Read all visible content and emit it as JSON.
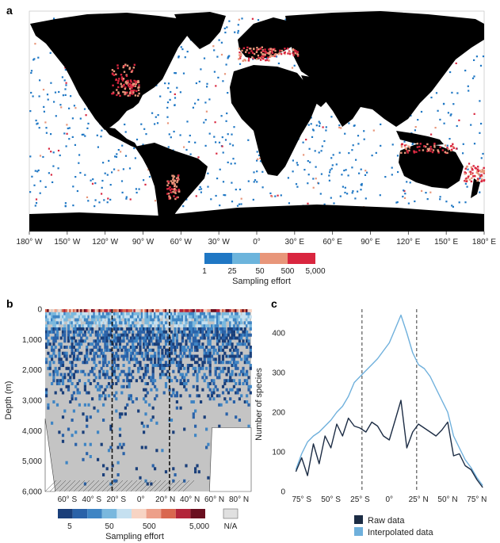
{
  "panels": {
    "a": "a",
    "b": "b",
    "c": "c"
  },
  "colors": {
    "land": "#000000",
    "low": "#1f77c4",
    "mid": "#e8967a",
    "high": "#d9263f",
    "grey": "#c4c4c4",
    "raw": "#1c2c44",
    "interp": "#6fb0dc"
  },
  "chart_data": [
    {
      "type": "heatmap",
      "panel": "a",
      "x_ticks": [
        "180° W",
        "150° W",
        "120° W",
        "90° W",
        "60° W",
        "30° W",
        "0°",
        "30° E",
        "60° E",
        "90° E",
        "120° E",
        "150° E",
        "180° E"
      ],
      "xlim": [
        -180,
        180
      ],
      "legend": {
        "title": "Sampling effort",
        "tick_labels": [
          "1",
          "25",
          "50",
          "500",
          "5,000"
        ],
        "colors": [
          "#1f77c4",
          "#6cb4dc",
          "#e8967a",
          "#d9263f"
        ]
      }
    },
    {
      "type": "heatmap",
      "panel": "b",
      "ylabel": "Depth (m)",
      "y_ticks": [
        "0",
        "1,000",
        "2,000",
        "3,000",
        "4,000",
        "5,000",
        "6,000"
      ],
      "ylim": [
        0,
        6000
      ],
      "x_ticks": [
        "60° S",
        "40° S",
        "20° S",
        "0°",
        "20° N",
        "40° N",
        "60° N",
        "80° N"
      ],
      "x_tick_values": [
        -60,
        -40,
        -20,
        0,
        20,
        40,
        60,
        80
      ],
      "xlim": [
        -78,
        90
      ],
      "dashed_lines_lat": [
        -23.4,
        23.4
      ],
      "legend": {
        "title": "Sampling effort",
        "tick_labels": [
          "5",
          "50",
          "500",
          "5,000",
          "N/A"
        ],
        "colors": [
          "#1a3f7a",
          "#2a62a8",
          "#3f85c4",
          "#7ab8de",
          "#c5e0f0",
          "#f7d4c4",
          "#eda08a",
          "#d9674f",
          "#b3253a",
          "#6a0f1f"
        ]
      }
    },
    {
      "type": "line",
      "panel": "c",
      "ylabel": "Number of species",
      "y_ticks": [
        "0",
        "100",
        "200",
        "300",
        "400"
      ],
      "ylim": [
        0,
        460
      ],
      "x_ticks": [
        "75° S",
        "50° S",
        "25° S",
        "0°",
        "25° N",
        "50° N",
        "75° N"
      ],
      "x_tick_values": [
        -75,
        -50,
        -25,
        0,
        25,
        50,
        75
      ],
      "xlim": [
        -85,
        88
      ],
      "dashed_lines_lat": [
        -23.4,
        23.4
      ],
      "x": [
        -80,
        -75,
        -70,
        -65,
        -60,
        -55,
        -50,
        -45,
        -40,
        -35,
        -30,
        -25,
        -20,
        -15,
        -10,
        -5,
        0,
        5,
        10,
        15,
        20,
        25,
        30,
        35,
        40,
        45,
        50,
        55,
        60,
        65,
        70,
        75,
        80
      ],
      "series": [
        {
          "name": "Interpolated data",
          "values": [
            55,
            95,
            125,
            140,
            150,
            165,
            180,
            200,
            215,
            240,
            275,
            290,
            305,
            320,
            335,
            355,
            375,
            410,
            445,
            400,
            350,
            320,
            310,
            290,
            260,
            230,
            200,
            140,
            110,
            80,
            60,
            35,
            15
          ]
        },
        {
          "name": "Raw data",
          "values": [
            50,
            85,
            40,
            120,
            70,
            140,
            110,
            170,
            140,
            185,
            165,
            160,
            150,
            175,
            165,
            140,
            130,
            180,
            230,
            110,
            150,
            170,
            160,
            150,
            140,
            155,
            175,
            90,
            95,
            65,
            55,
            30,
            10
          ]
        }
      ]
    }
  ]
}
